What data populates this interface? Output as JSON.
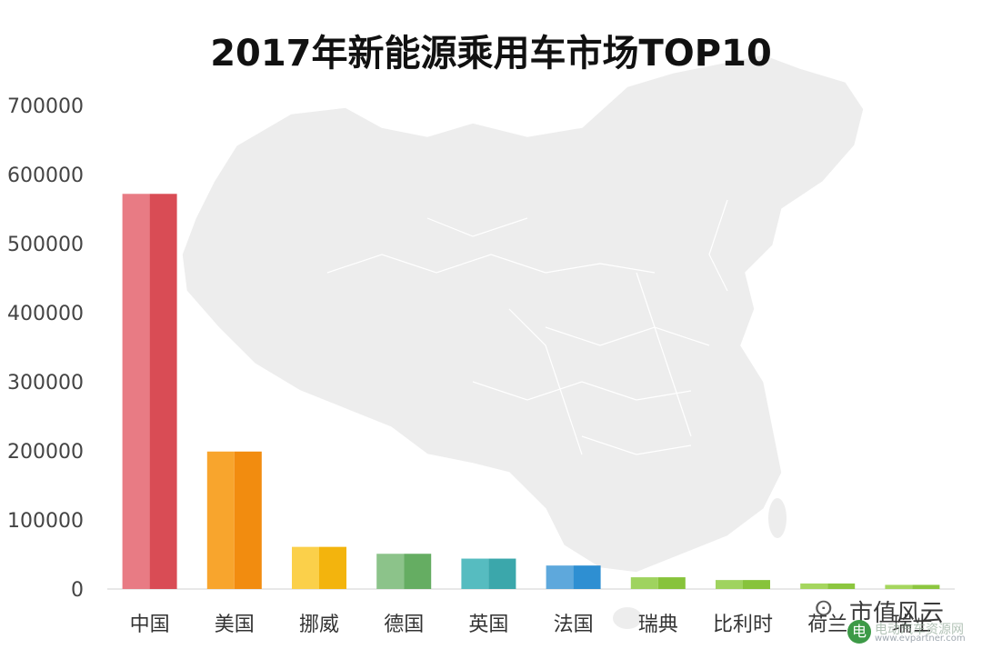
{
  "chart_data": {
    "type": "bar",
    "title": "2017年新能源乘用车市场TOP10",
    "xlabel": "",
    "ylabel": "",
    "categories": [
      "中国",
      "美国",
      "挪威",
      "德国",
      "英国",
      "法国",
      "瑞典",
      "比利时",
      "荷兰",
      "瑞士"
    ],
    "values": [
      572000,
      199000,
      61000,
      51000,
      44000,
      34000,
      17000,
      13000,
      8000,
      6000
    ],
    "ylim": [
      0,
      700000
    ],
    "yticks": [
      "700000",
      "600000",
      "500000",
      "400000",
      "300000",
      "200000",
      "100000",
      "0"
    ],
    "grid": false,
    "legend": "none",
    "bar_colors": [
      {
        "light": "#e87b84",
        "dark": "#d94c55"
      },
      {
        "light": "#f8a52d",
        "dark": "#f28c0f"
      },
      {
        "light": "#fbd04a",
        "dark": "#f3b40d"
      },
      {
        "light": "#8cc38a",
        "dark": "#65ad62"
      },
      {
        "light": "#56bcc0",
        "dark": "#3ba7ab"
      },
      {
        "light": "#5ea8dc",
        "dark": "#2e8fd2"
      },
      {
        "light": "#9fd35f",
        "dark": "#87c33b"
      },
      {
        "light": "#9fd35f",
        "dark": "#87c33b"
      },
      {
        "light": "#a5d65e",
        "dark": "#8cc63f"
      },
      {
        "light": "#a5d65e",
        "dark": "#8cc63f"
      }
    ],
    "background_map_color": "#ededed"
  },
  "watermark": {
    "account": "市值风云",
    "icon": "wechat-icon",
    "logo_badge": "电",
    "logo_text": "电动汽车资源网",
    "logo_url": "www.evpartner.com"
  }
}
